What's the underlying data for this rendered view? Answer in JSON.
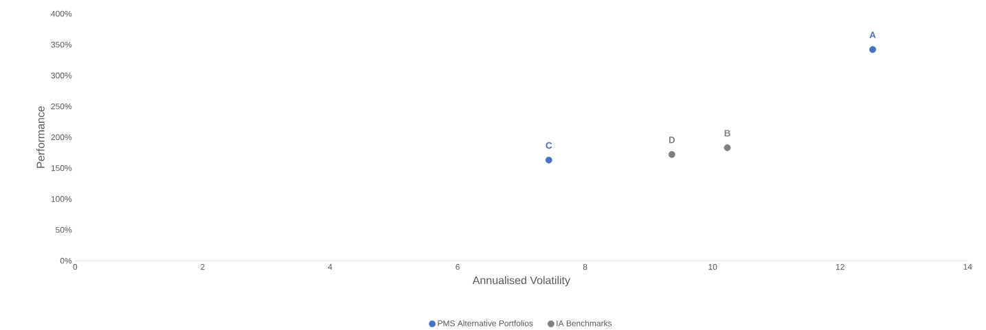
{
  "chart_data": {
    "type": "scatter",
    "xlabel": "Annualised Volatility",
    "ylabel": "Performance",
    "xlim": [
      0,
      14
    ],
    "xticks": [
      0,
      2,
      4,
      6,
      8,
      10,
      12,
      14
    ],
    "ylim": [
      0,
      400
    ],
    "yticks": [
      {
        "value": 0,
        "label": "0%"
      },
      {
        "value": 50,
        "label": "50%"
      },
      {
        "value": 100,
        "label": "100%"
      },
      {
        "value": 150,
        "label": "150%"
      },
      {
        "value": 200,
        "label": "200%"
      },
      {
        "value": 250,
        "label": "250%"
      },
      {
        "value": 300,
        "label": "300%"
      },
      {
        "value": 350,
        "label": "350%"
      },
      {
        "value": 400,
        "label": "400%"
      }
    ],
    "series": [
      {
        "name": "PMS Alternative Portfolios",
        "color": "#4472c4",
        "x": [
          12.51,
          7.43
        ],
        "values": [
          342,
          163
        ]
      },
      {
        "name": "IA Benchmarks",
        "color": "#7f7f7f",
        "x": [
          10.23,
          9.36
        ],
        "values": [
          183,
          172
        ]
      }
    ],
    "annotations": [
      {
        "text": "A",
        "x": 12.51,
        "y": 342
      },
      {
        "text": "B",
        "x": 10.23,
        "y": 183
      },
      {
        "text": "C",
        "x": 7.43,
        "y": 163
      },
      {
        "text": "D",
        "x": 9.36,
        "y": 172
      }
    ],
    "marker": "circle",
    "grid": false,
    "legend": "bottom"
  }
}
